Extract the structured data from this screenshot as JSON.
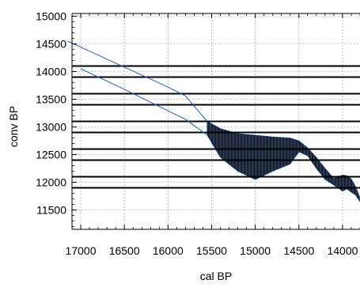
{
  "chart_data": {
    "type": "line",
    "title": "",
    "xlabel": "cal BP",
    "ylabel": "conv BP",
    "x_reversed": true,
    "xlim": [
      17100,
      13800
    ],
    "ylim": [
      11150,
      15050
    ],
    "x_ticks": [
      17000,
      16500,
      16000,
      15500,
      15000,
      14500,
      14000
    ],
    "y_ticks": [
      11500,
      12000,
      12500,
      13000,
      13500,
      14000,
      14500,
      15000
    ],
    "x_tick_labels": [
      "17000",
      "16500",
      "16000",
      "15500",
      "15000",
      "14500",
      "14000"
    ],
    "y_tick_labels": [
      "11500",
      "12000",
      "12500",
      "13000",
      "13500",
      "14000",
      "14500",
      "15000"
    ],
    "grid": true,
    "colors": {
      "series": "#1f5fbf",
      "band": "#000000",
      "grid": "#9a9a9a",
      "lines": "#000000"
    },
    "horizontal_lines": [
      14100,
      13900,
      13600,
      13400,
      13100,
      12900,
      12600,
      12400,
      12100,
      11900
    ],
    "series": [
      {
        "values_x": [
          17150,
          16500,
          16000,
          15800,
          15550
        ],
        "values_y": [
          14550,
          14080,
          13720,
          13560,
          13100
        ]
      },
      {
        "values_x": [
          17000,
          16500,
          16000,
          15800,
          15550
        ],
        "values_y": [
          14050,
          13680,
          13290,
          13140,
          12850
        ]
      }
    ],
    "band": {
      "x": [
        15550,
        15400,
        15200,
        15000,
        14800,
        14600,
        14500,
        14400,
        14300,
        14200,
        14100,
        14000,
        13950,
        13900,
        13850,
        13800
      ],
      "upper": [
        13100,
        12970,
        12880,
        12850,
        12820,
        12800,
        12750,
        12620,
        12450,
        12250,
        12070,
        12130,
        12120,
        12060,
        11920,
        11720
      ],
      "lower": [
        12850,
        12450,
        12200,
        12050,
        12200,
        12330,
        12550,
        12480,
        12250,
        12050,
        11950,
        11840,
        11880,
        11820,
        11770,
        11650
      ]
    }
  }
}
